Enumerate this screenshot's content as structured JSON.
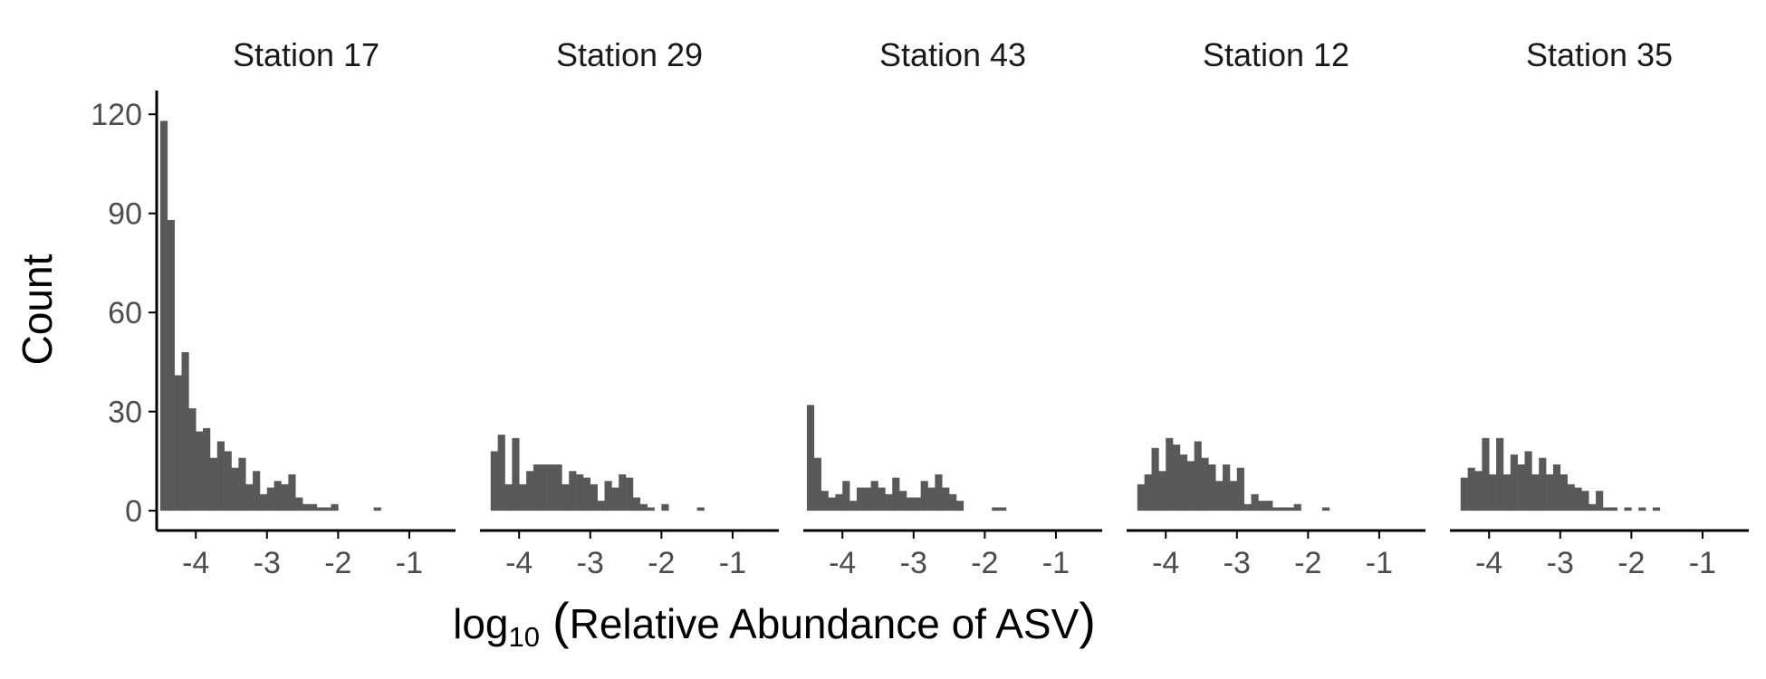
{
  "chart_data": {
    "type": "bar",
    "subtype": "faceted-histogram",
    "ylabel": "Count",
    "xlabel": {
      "prefix": "log",
      "subscript": "10",
      "paren_open": "(",
      "body": "Relative Abundance of ASV",
      "paren_close": ")"
    },
    "xlim": [
      -4.55,
      -0.35
    ],
    "ylim": [
      -6,
      125
    ],
    "x_ticks": [
      -4,
      -3,
      -2,
      -1
    ],
    "x_tick_labels": [
      "-4",
      "-3",
      "-2",
      "-1"
    ],
    "y_ticks": [
      0,
      30,
      60,
      90,
      120
    ],
    "y_tick_labels": [
      "0",
      "30",
      "60",
      "90",
      "120"
    ],
    "bin_width": 0.1,
    "grid": false,
    "legend": "none",
    "colors": {
      "bar": "#595959",
      "axis": "#000000",
      "tick_text": "#4d4d4d",
      "title_text": "#1a1a1a"
    },
    "panels": [
      {
        "title": "Station 17",
        "bins": [
          [
            -4.45,
            118
          ],
          [
            -4.35,
            88
          ],
          [
            -4.25,
            41
          ],
          [
            -4.15,
            48
          ],
          [
            -4.05,
            31
          ],
          [
            -3.95,
            24
          ],
          [
            -3.85,
            25
          ],
          [
            -3.75,
            16
          ],
          [
            -3.65,
            21
          ],
          [
            -3.55,
            18
          ],
          [
            -3.45,
            13
          ],
          [
            -3.35,
            16
          ],
          [
            -3.25,
            8
          ],
          [
            -3.15,
            12
          ],
          [
            -3.05,
            5
          ],
          [
            -2.95,
            7
          ],
          [
            -2.85,
            9
          ],
          [
            -2.75,
            8
          ],
          [
            -2.65,
            11
          ],
          [
            -2.55,
            4
          ],
          [
            -2.45,
            2
          ],
          [
            -2.35,
            2
          ],
          [
            -2.25,
            1
          ],
          [
            -2.15,
            1
          ],
          [
            -2.05,
            2
          ],
          [
            -1.45,
            1
          ]
        ]
      },
      {
        "title": "Station 29",
        "bins": [
          [
            -4.35,
            18
          ],
          [
            -4.25,
            23
          ],
          [
            -4.15,
            8
          ],
          [
            -4.05,
            22
          ],
          [
            -3.95,
            8
          ],
          [
            -3.85,
            12
          ],
          [
            -3.75,
            14
          ],
          [
            -3.65,
            14
          ],
          [
            -3.55,
            14
          ],
          [
            -3.45,
            14
          ],
          [
            -3.35,
            8
          ],
          [
            -3.25,
            12
          ],
          [
            -3.15,
            11
          ],
          [
            -3.05,
            10
          ],
          [
            -2.95,
            8
          ],
          [
            -2.85,
            3
          ],
          [
            -2.75,
            9
          ],
          [
            -2.65,
            7
          ],
          [
            -2.55,
            11
          ],
          [
            -2.45,
            10
          ],
          [
            -2.35,
            4
          ],
          [
            -2.25,
            2
          ],
          [
            -2.15,
            1
          ],
          [
            -1.95,
            2
          ],
          [
            -1.45,
            1
          ]
        ]
      },
      {
        "title": "Station 43",
        "bins": [
          [
            -4.45,
            32
          ],
          [
            -4.35,
            16
          ],
          [
            -4.25,
            6
          ],
          [
            -4.15,
            4
          ],
          [
            -4.05,
            5
          ],
          [
            -3.95,
            9
          ],
          [
            -3.85,
            3
          ],
          [
            -3.75,
            7
          ],
          [
            -3.65,
            7
          ],
          [
            -3.55,
            9
          ],
          [
            -3.45,
            7
          ],
          [
            -3.35,
            5
          ],
          [
            -3.25,
            10
          ],
          [
            -3.15,
            6
          ],
          [
            -3.05,
            4
          ],
          [
            -2.95,
            4
          ],
          [
            -2.85,
            9
          ],
          [
            -2.75,
            7
          ],
          [
            -2.65,
            11
          ],
          [
            -2.55,
            7
          ],
          [
            -2.45,
            5
          ],
          [
            -2.35,
            3
          ],
          [
            -1.85,
            1
          ],
          [
            -1.75,
            1
          ]
        ]
      },
      {
        "title": "Station 12",
        "bins": [
          [
            -4.35,
            8
          ],
          [
            -4.25,
            11
          ],
          [
            -4.15,
            19
          ],
          [
            -4.05,
            12
          ],
          [
            -3.95,
            22
          ],
          [
            -3.85,
            20
          ],
          [
            -3.75,
            17
          ],
          [
            -3.65,
            15
          ],
          [
            -3.55,
            21
          ],
          [
            -3.45,
            16
          ],
          [
            -3.35,
            14
          ],
          [
            -3.25,
            9
          ],
          [
            -3.15,
            14
          ],
          [
            -3.05,
            9
          ],
          [
            -2.95,
            13
          ],
          [
            -2.85,
            2
          ],
          [
            -2.75,
            5
          ],
          [
            -2.65,
            3
          ],
          [
            -2.55,
            3
          ],
          [
            -2.45,
            1
          ],
          [
            -2.35,
            1
          ],
          [
            -2.25,
            1
          ],
          [
            -2.15,
            2
          ],
          [
            -1.75,
            1
          ]
        ]
      },
      {
        "title": "Station 35",
        "bins": [
          [
            -4.35,
            10
          ],
          [
            -4.25,
            13
          ],
          [
            -4.15,
            12
          ],
          [
            -4.05,
            22
          ],
          [
            -3.95,
            11
          ],
          [
            -3.85,
            22
          ],
          [
            -3.75,
            11
          ],
          [
            -3.65,
            17
          ],
          [
            -3.55,
            14
          ],
          [
            -3.45,
            18
          ],
          [
            -3.35,
            11
          ],
          [
            -3.25,
            16
          ],
          [
            -3.15,
            11
          ],
          [
            -3.05,
            14
          ],
          [
            -2.95,
            11
          ],
          [
            -2.85,
            8
          ],
          [
            -2.75,
            7
          ],
          [
            -2.65,
            6
          ],
          [
            -2.55,
            2
          ],
          [
            -2.45,
            6
          ],
          [
            -2.35,
            1
          ],
          [
            -2.25,
            1
          ],
          [
            -2.05,
            1
          ],
          [
            -1.85,
            1
          ],
          [
            -1.65,
            1
          ]
        ]
      }
    ]
  }
}
